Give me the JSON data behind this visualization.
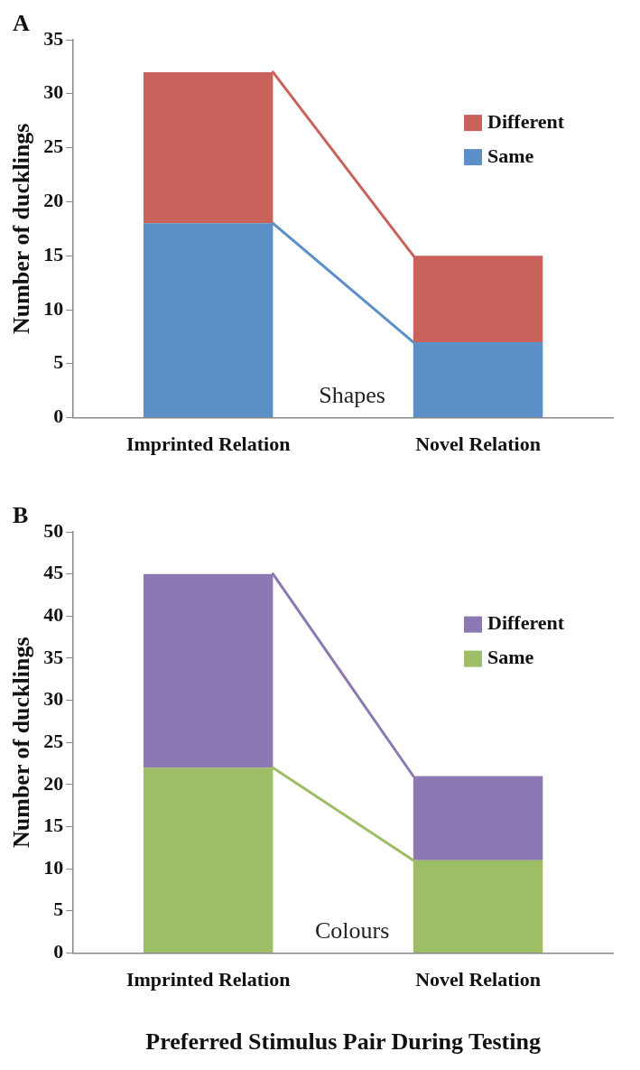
{
  "chart_data": [
    {
      "type": "bar",
      "title": "A",
      "ylabel": "Number of ducklings",
      "categories": [
        "Imprinted Relation",
        "Novel Relation"
      ],
      "stacked": true,
      "series": [
        {
          "name": "Same",
          "color": "#5b8fc7",
          "values": [
            18,
            7
          ]
        },
        {
          "name": "Different",
          "color": "#c9625a",
          "values": [
            14,
            8
          ]
        }
      ],
      "ylim": [
        0,
        35
      ],
      "yticks": [
        0,
        5,
        10,
        15,
        20,
        25,
        30,
        35
      ],
      "grid": false,
      "legend": "right",
      "annotations": [
        "Shapes"
      ]
    },
    {
      "type": "bar",
      "title": "B",
      "ylabel": "Number of ducklings",
      "xlabel": "Preferred Stimulus Pair During Testing",
      "categories": [
        "Imprinted Relation",
        "Novel Relation"
      ],
      "stacked": true,
      "series": [
        {
          "name": "Same",
          "color": "#9dbe64",
          "values": [
            22,
            11
          ]
        },
        {
          "name": "Different",
          "color": "#8c78b2",
          "values": [
            23,
            10
          ]
        }
      ],
      "ylim": [
        0,
        50
      ],
      "yticks": [
        0,
        5,
        10,
        15,
        20,
        25,
        30,
        35,
        40,
        45,
        50
      ],
      "grid": false,
      "legend": "right",
      "annotations": [
        "Colours"
      ]
    }
  ]
}
